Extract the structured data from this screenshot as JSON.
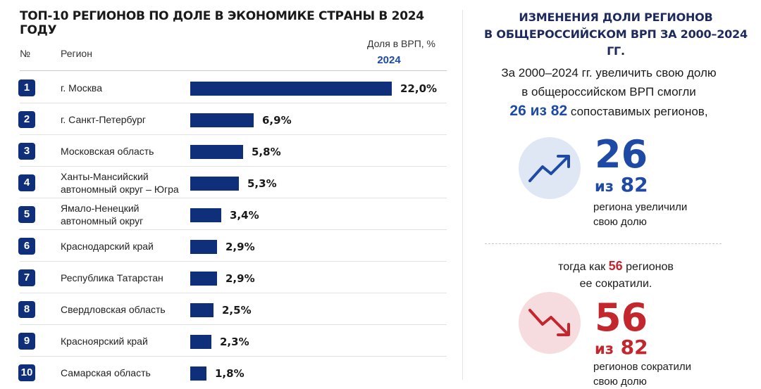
{
  "left": {
    "title": "ТОП-10 РЕГИОНОВ ПО ДОЛЕ В ЭКОНОМИКЕ СТРАНЫ В 2024 ГОДУ",
    "col_num": "№",
    "col_region": "Регион",
    "col_share": "Доля в ВРП, %",
    "col_year": "2024"
  },
  "colors": {
    "bar": "#0f2f7a",
    "accent_blue": "#1e4aa5",
    "accent_red": "#c4262e"
  },
  "chart_data": {
    "type": "bar",
    "orientation": "horizontal",
    "categories": [
      "г. Москва",
      "г. Санкт-Петербург",
      "Московская область",
      "Ханты-Мансийский автономный округ – Югра",
      "Ямало-Ненецкий автономный округ",
      "Краснодарский край",
      "Республика Татарстан",
      "Свердловская область",
      "Красноярский край",
      "Самарская область"
    ],
    "ranks": [
      "1",
      "2",
      "3",
      "4",
      "5",
      "6",
      "7",
      "8",
      "9",
      "10"
    ],
    "values": [
      22.0,
      6.9,
      5.8,
      5.3,
      3.4,
      2.9,
      2.9,
      2.5,
      2.3,
      1.8
    ],
    "value_labels": [
      "22,0%",
      "6,9%",
      "5,8%",
      "5,3%",
      "3,4%",
      "2,9%",
      "2,9%",
      "2,5%",
      "2,3%",
      "1,8%"
    ],
    "title": "ТОП-10 РЕГИОНОВ ПО ДОЛЕ В ЭКОНОМИКЕ СТРАНЫ В 2024 ГОДУ",
    "ylabel": "Доля в ВРП, %",
    "xlim": [
      0,
      22.0
    ],
    "grid": false
  },
  "right": {
    "title_line1": "ИЗМЕНЕНИЯ ДОЛИ РЕГИОНОВ",
    "title_line2": "В ОБЩЕРОССИЙСКОМ ВРП ЗА 2000–2024 ГГ.",
    "intro_line1": "За 2000–2024 гг. увеличить свою долю",
    "intro_line2": "в общероссийском ВРП смогли",
    "intro_highlight": "26 из 82",
    "intro_line3_rest": " сопоставимых регионов,",
    "increase": {
      "icon": "trend-up-icon",
      "number": "26",
      "of_word": "из",
      "of_total": "82",
      "caption_line1": "региона увеличили",
      "caption_line2": "свою долю"
    },
    "middle_pre": "тогда как ",
    "middle_number": "56",
    "middle_post": " регионов",
    "middle_line2": "ее сократили.",
    "decrease": {
      "icon": "trend-down-icon",
      "number": "56",
      "of_word": "из",
      "of_total": "82",
      "caption_line1": "регионов сократили",
      "caption_line2": "свою долю"
    }
  }
}
